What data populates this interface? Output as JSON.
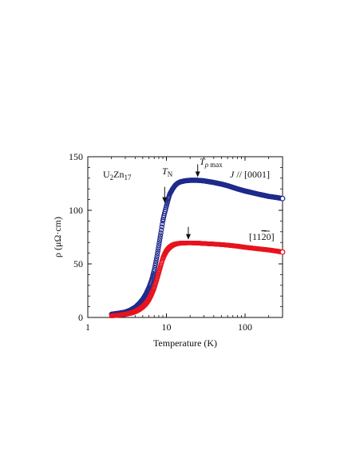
{
  "chart_data": {
    "type": "scatter",
    "xscale": "log",
    "xlabel": "Temperature (K)",
    "ylabel": "ρ (μΩ·cm)",
    "xlim": [
      1,
      300
    ],
    "ylim": [
      0,
      150
    ],
    "xticks": [
      1,
      10,
      100
    ],
    "xtick_labels": [
      "1",
      "10",
      "100"
    ],
    "yticks": [
      0,
      50,
      100,
      150
    ],
    "ytick_labels": [
      "0",
      "50",
      "100",
      "150"
    ],
    "grid": false,
    "legend": "none",
    "series": [
      {
        "name": "J // [0001]",
        "color": "#1f2a8c",
        "marker": "open-circle",
        "x": [
          2,
          2.5,
          3,
          3.5,
          4,
          4.5,
          5,
          5.5,
          6,
          6.5,
          7,
          7.5,
          8,
          8.5,
          9,
          9.3,
          9.6,
          10,
          10.5,
          11,
          12,
          13,
          14,
          15,
          17,
          20,
          25,
          30,
          40,
          50,
          60,
          80,
          100,
          150,
          200,
          250,
          300
        ],
        "y": [
          3,
          4,
          5,
          7,
          9.5,
          13,
          17,
          22,
          28,
          35,
          44,
          55,
          67,
          79,
          90,
          95,
          99,
          104,
          110,
          115,
          120,
          123.5,
          125.5,
          126.5,
          127.5,
          128,
          128,
          127.5,
          126,
          124.5,
          123,
          120,
          118,
          115,
          113,
          112,
          111
        ]
      },
      {
        "name": "[11-20]",
        "color": "#e8131e",
        "marker": "open-square",
        "x": [
          2,
          2.5,
          3,
          3.5,
          4,
          4.5,
          5,
          5.5,
          6,
          6.5,
          7,
          7.5,
          8,
          8.5,
          9,
          9.5,
          10,
          10.5,
          11,
          12,
          13,
          14,
          15,
          17,
          20,
          25,
          30,
          40,
          50,
          60,
          80,
          100,
          150,
          200,
          250,
          300
        ],
        "y": [
          1.5,
          2.2,
          3,
          4,
          5.5,
          7.5,
          10,
          13,
          17,
          22,
          28,
          35,
          42,
          49,
          55,
          59,
          62,
          64,
          65.5,
          67.5,
          68.5,
          69,
          69.3,
          69.5,
          69.6,
          69.4,
          69,
          68.5,
          68,
          67.5,
          66.5,
          65.5,
          64,
          63,
          62,
          61
        ]
      }
    ],
    "annotations": [
      {
        "id": "sample",
        "text": "U2Zn17"
      },
      {
        "id": "tn",
        "text": "TN",
        "x": 9.5,
        "y": 104
      },
      {
        "id": "trhomax",
        "text": "Tρ max",
        "x": 25,
        "y": 128
      },
      {
        "id": "red-max",
        "x": 19,
        "y": 69.6
      },
      {
        "id": "blue-label",
        "text": "J // [0001]"
      },
      {
        "id": "red-label",
        "text": "[1120]"
      }
    ]
  }
}
